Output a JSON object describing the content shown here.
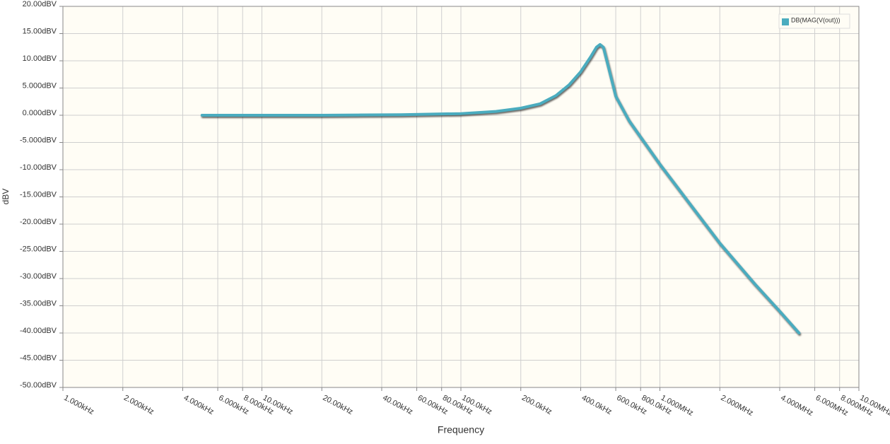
{
  "chart_data": {
    "type": "line",
    "xlabel": "Frequency",
    "ylabel": "dBV",
    "xscale": "log",
    "grid": true,
    "legend": "top-right",
    "xlim": [
      1000,
      10000000
    ],
    "ylim": [
      -50,
      20
    ],
    "xticks": [
      {
        "value": 1000,
        "label": "1.000kHz"
      },
      {
        "value": 2000,
        "label": "2.000kHz"
      },
      {
        "value": 4000,
        "label": "4.000kHz"
      },
      {
        "value": 6000,
        "label": "6.000kHz"
      },
      {
        "value": 8000,
        "label": "8.000kHz"
      },
      {
        "value": 10000,
        "label": "10.00kHz"
      },
      {
        "value": 20000,
        "label": "20.00kHz"
      },
      {
        "value": 40000,
        "label": "40.00kHz"
      },
      {
        "value": 60000,
        "label": "60.00kHz"
      },
      {
        "value": 80000,
        "label": "80.00kHz"
      },
      {
        "value": 100000,
        "label": "100.0kHz"
      },
      {
        "value": 200000,
        "label": "200.0kHz"
      },
      {
        "value": 400000,
        "label": "400.0kHz"
      },
      {
        "value": 600000,
        "label": "600.0kHz"
      },
      {
        "value": 800000,
        "label": "800.0kHz"
      },
      {
        "value": 1000000,
        "label": "1.000MHz"
      },
      {
        "value": 2000000,
        "label": "2.000MHz"
      },
      {
        "value": 4000000,
        "label": "4.000MHz"
      },
      {
        "value": 6000000,
        "label": "6.000MHz"
      },
      {
        "value": 8000000,
        "label": "8.000MHz"
      },
      {
        "value": 10000000,
        "label": "10.00MHz"
      }
    ],
    "yticks": [
      {
        "value": 20,
        "label": "20.00dBV"
      },
      {
        "value": 15,
        "label": "15.00dBV"
      },
      {
        "value": 10,
        "label": "10.00dBV"
      },
      {
        "value": 5,
        "label": "5.000dBV"
      },
      {
        "value": 0,
        "label": "0.000dBV"
      },
      {
        "value": -5,
        "label": "-5.000dBV"
      },
      {
        "value": -10,
        "label": "-10.00dBV"
      },
      {
        "value": -15,
        "label": "-15.00dBV"
      },
      {
        "value": -20,
        "label": "-20.00dBV"
      },
      {
        "value": -25,
        "label": "-25.00dBV"
      },
      {
        "value": -30,
        "label": "-30.00dBV"
      },
      {
        "value": -35,
        "label": "-35.00dBV"
      },
      {
        "value": -40,
        "label": "-40.00dBV"
      },
      {
        "value": -45,
        "label": "-45.00dBV"
      },
      {
        "value": -50,
        "label": "-50.00dBV"
      }
    ],
    "x": [
      5000,
      10000,
      20000,
      50000,
      100000,
      150000,
      200000,
      250000,
      300000,
      350000,
      400000,
      450000,
      480000,
      500000,
      520000,
      550000,
      600000,
      700000,
      800000,
      1000000,
      1500000,
      2000000,
      3000000,
      4000000,
      5000000
    ],
    "series": [
      {
        "name": "DB(MAG(V(out)))",
        "color": "#4aacbf",
        "values": [
          0,
          0,
          0,
          0.1,
          0.3,
          0.7,
          1.3,
          2.1,
          3.6,
          5.6,
          8,
          10.8,
          12.5,
          13,
          12.5,
          9,
          3.5,
          -1,
          -4,
          -9,
          -17.5,
          -23.5,
          -31,
          -36,
          -40
        ]
      }
    ]
  }
}
